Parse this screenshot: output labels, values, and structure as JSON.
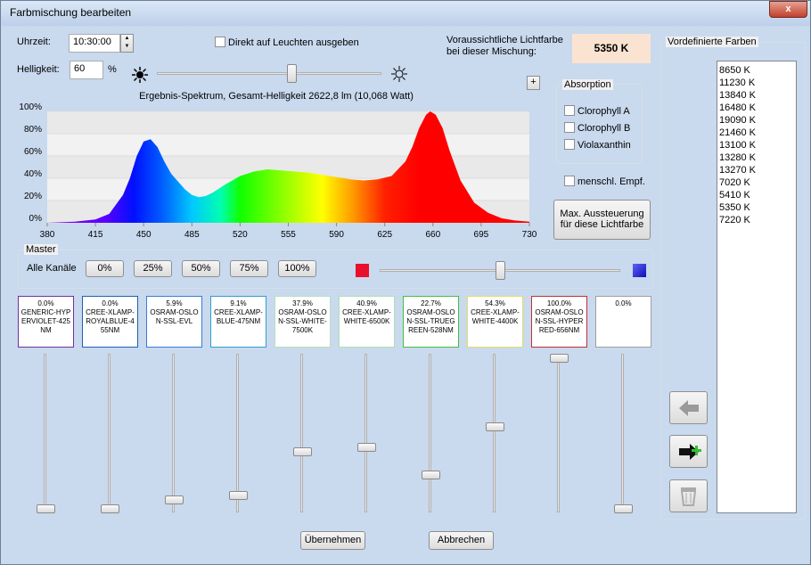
{
  "window": {
    "title": "Farbmischung bearbeiten",
    "close": "x"
  },
  "controls": {
    "time_label": "Uhrzeit:",
    "time_value": "10:30:00",
    "direct_output": "Direkt auf Leuchten ausgeben",
    "brightness_label": "Helligkeit:",
    "brightness_value": 60,
    "brightness_unit": "%",
    "predicted_label_1": "Voraussichtliche Lichtfarbe",
    "predicted_label_2": "bei dieser Mischung:",
    "predicted_value": "5350 K",
    "plus": "+"
  },
  "spectrum": {
    "title": "Ergebnis-Spektrum, Gesamt-Helligkeit 2622,8 lm (10,068 Watt)",
    "xlim": [
      380,
      730
    ],
    "ylim": [
      0,
      100
    ],
    "xticks": [
      380,
      415,
      450,
      485,
      520,
      555,
      590,
      625,
      660,
      695,
      730
    ],
    "yticks": [
      {
        "value": 0,
        "label": "0%"
      },
      {
        "value": 20,
        "label": "20%"
      },
      {
        "value": 40,
        "label": "40%"
      },
      {
        "value": 60,
        "label": "60%"
      },
      {
        "value": 80,
        "label": "80%"
      },
      {
        "value": 100,
        "label": "100%"
      }
    ],
    "x": [
      380,
      400,
      415,
      425,
      435,
      440,
      445,
      450,
      455,
      460,
      465,
      470,
      475,
      480,
      485,
      490,
      495,
      500,
      510,
      520,
      530,
      540,
      550,
      560,
      570,
      580,
      590,
      600,
      610,
      620,
      630,
      640,
      645,
      650,
      655,
      658,
      662,
      667,
      672,
      680,
      690,
      700,
      710,
      720,
      730
    ],
    "values": [
      0,
      1,
      3,
      8,
      25,
      40,
      60,
      73,
      75,
      68,
      55,
      44,
      37,
      30,
      25,
      23,
      24,
      27,
      35,
      42,
      46,
      48,
      47,
      46,
      45,
      43,
      41,
      39,
      38,
      39,
      42,
      55,
      68,
      85,
      97,
      100,
      97,
      85,
      65,
      38,
      18,
      9,
      4,
      2,
      1
    ]
  },
  "absorption": {
    "title": "Absorption",
    "options": [
      "Clorophyll A",
      "Clorophyll B",
      "Violaxanthin"
    ]
  },
  "human": "menschl. Empf.",
  "max_button": [
    "Max. Aussteuerung",
    "für diese Lichtfarbe"
  ],
  "master": {
    "title": "Master",
    "all_channels": "Alle Kanäle",
    "buttons": [
      "0%",
      "25%",
      "50%",
      "75%",
      "100%"
    ]
  },
  "channels": [
    {
      "value": 0.0,
      "value_label": "0.0%",
      "name": "GENERIC-HYPERVIOLET-425NM",
      "color": "#7030a0"
    },
    {
      "value": 0.0,
      "value_label": "0.0%",
      "name": "CREE-XLAMP-ROYALBLUE-455NM",
      "color": "#2060b0"
    },
    {
      "value": 5.9,
      "value_label": "5.9%",
      "name": "OSRAM-OSLON-SSL-EVL",
      "color": "#3a7bd5"
    },
    {
      "value": 9.1,
      "value_label": "9.1%",
      "name": "CREE-XLAMP-BLUE-475NM",
      "color": "#30a0d0"
    },
    {
      "value": 37.9,
      "value_label": "37.9%",
      "name": "OSRAM-OSLON-SSL-WHITE-7500K",
      "color": "#b8e0b8"
    },
    {
      "value": 40.9,
      "value_label": "40.9%",
      "name": "CREE-XLAMP-WHITE-6500K",
      "color": "#b0e0b0"
    },
    {
      "value": 22.7,
      "value_label": "22.7%",
      "name": "OSRAM-OSLON-SSL-TRUEGREEN-528NM",
      "color": "#40c040"
    },
    {
      "value": 54.3,
      "value_label": "54.3%",
      "name": "CREE-XLAMP-WHITE-4400K",
      "color": "#e0e060"
    },
    {
      "value": 100.0,
      "value_label": "100.0%",
      "name": "OSRAM-OSLON-SSL-HYPERRED-656NM",
      "color": "#c03030"
    },
    {
      "value": 0.0,
      "value_label": "0.0%",
      "color": "#a0a0a0"
    }
  ],
  "presets": {
    "title": "Vordefinierte Farben",
    "items": [
      "8650 K",
      "11230 K",
      "13840 K",
      "16480 K",
      "19090 K",
      "21460 K",
      "13100 K",
      "13280 K",
      "13270 K",
      "7020 K",
      "5410 K",
      "5350 K",
      "7220 K"
    ]
  },
  "buttons": {
    "ok": "Übernehmen",
    "cancel": "Abbrechen"
  }
}
